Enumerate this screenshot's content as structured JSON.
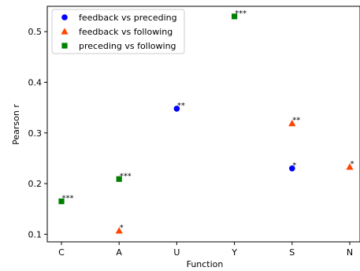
{
  "chart_data": {
    "type": "scatter",
    "xlabel": "Function",
    "ylabel": "Pearson r",
    "categories": [
      "C",
      "A",
      "U",
      "Y",
      "S",
      "N"
    ],
    "ylim": [
      0.085,
      0.55
    ],
    "yticks": [
      0.1,
      0.2,
      0.3,
      0.4,
      0.5
    ],
    "ytick_labels": [
      "0.1",
      "0.2",
      "0.3",
      "0.4",
      "0.5"
    ],
    "grid": false,
    "legend_position": "top-left",
    "series": [
      {
        "name": "feedback vs preceding",
        "marker": "circle",
        "color": "#0000ff",
        "points": [
          {
            "x": "U",
            "y": 0.348,
            "label": "**"
          },
          {
            "x": "S",
            "y": 0.23,
            "label": "*"
          }
        ]
      },
      {
        "name": "feedback vs following",
        "marker": "triangle",
        "color": "#ff4500",
        "points": [
          {
            "x": "A",
            "y": 0.107,
            "label": "*"
          },
          {
            "x": "S",
            "y": 0.319,
            "label": "**"
          },
          {
            "x": "N",
            "y": 0.233,
            "label": "*"
          }
        ]
      },
      {
        "name": "preceding vs following",
        "marker": "square",
        "color": "#008000",
        "points": [
          {
            "x": "C",
            "y": 0.165,
            "label": "***"
          },
          {
            "x": "A",
            "y": 0.209,
            "label": "***"
          },
          {
            "x": "Y",
            "y": 0.53,
            "label": "***"
          }
        ]
      }
    ]
  }
}
